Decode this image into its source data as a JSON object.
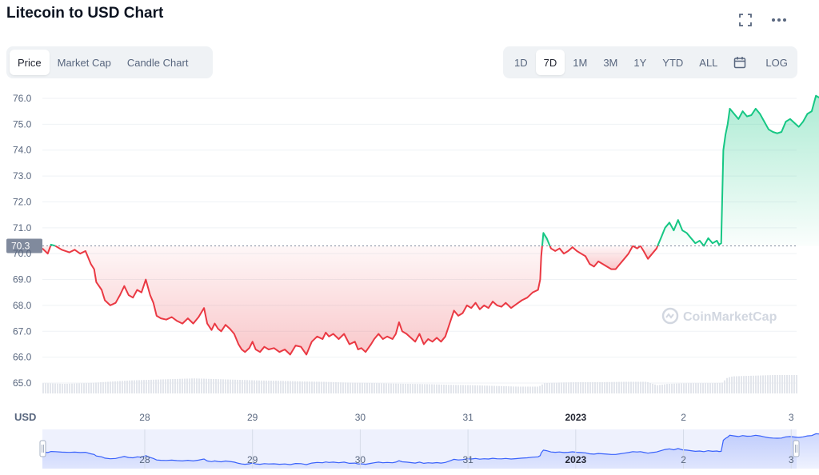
{
  "header": {
    "title": "Litecoin to USD Chart"
  },
  "tabs": [
    {
      "label": "Price",
      "active": true
    },
    {
      "label": "Market Cap",
      "active": false
    },
    {
      "label": "Candle Chart",
      "active": false
    }
  ],
  "ranges": [
    {
      "label": "1D",
      "active": false
    },
    {
      "label": "7D",
      "active": true
    },
    {
      "label": "1M",
      "active": false
    },
    {
      "label": "3M",
      "active": false
    },
    {
      "label": "1Y",
      "active": false
    },
    {
      "label": "YTD",
      "active": false
    },
    {
      "label": "ALL",
      "active": false
    }
  ],
  "log_label": "LOG",
  "icons": {
    "fullscreen": "fullscreen-icon",
    "more": "more-icon",
    "calendar": "calendar-icon"
  },
  "watermark": "CoinMarketCap",
  "currency_label": "USD",
  "colors": {
    "up": "#16c784",
    "down": "#ea3943",
    "accent": "#3861fb"
  },
  "chart_data": {
    "type": "area",
    "ylim": [
      64.6,
      76.4
    ],
    "yticks": [
      65.0,
      66.0,
      67.0,
      68.0,
      69.0,
      70.0,
      71.0,
      72.0,
      73.0,
      74.0,
      75.0,
      76.0
    ],
    "reference_value": 70.3,
    "reference_label": "70.3",
    "xticks": [
      {
        "label": "28",
        "bold": false,
        "x": 0.95
      },
      {
        "label": "29",
        "bold": false,
        "x": 1.95
      },
      {
        "label": "30",
        "bold": false,
        "x": 2.95
      },
      {
        "label": "31",
        "bold": false,
        "x": 3.95
      },
      {
        "label": "2023",
        "bold": true,
        "x": 4.95
      },
      {
        "label": "2",
        "bold": false,
        "x": 5.95
      },
      {
        "label": "3",
        "bold": false,
        "x": 6.95
      }
    ],
    "xlim": [
      0,
      7
    ],
    "price": [
      [
        0.0,
        70.2
      ],
      [
        0.05,
        70.0
      ],
      [
        0.08,
        70.35
      ],
      [
        0.12,
        70.3
      ],
      [
        0.18,
        70.15
      ],
      [
        0.25,
        70.05
      ],
      [
        0.3,
        70.15
      ],
      [
        0.35,
        70.0
      ],
      [
        0.4,
        70.1
      ],
      [
        0.45,
        69.6
      ],
      [
        0.48,
        69.4
      ],
      [
        0.5,
        68.9
      ],
      [
        0.55,
        68.6
      ],
      [
        0.58,
        68.2
      ],
      [
        0.63,
        68.0
      ],
      [
        0.68,
        68.1
      ],
      [
        0.72,
        68.4
      ],
      [
        0.76,
        68.75
      ],
      [
        0.8,
        68.4
      ],
      [
        0.84,
        68.3
      ],
      [
        0.88,
        68.6
      ],
      [
        0.92,
        68.5
      ],
      [
        0.96,
        69.0
      ],
      [
        1.0,
        68.4
      ],
      [
        1.03,
        68.1
      ],
      [
        1.06,
        67.6
      ],
      [
        1.1,
        67.5
      ],
      [
        1.15,
        67.45
      ],
      [
        1.2,
        67.55
      ],
      [
        1.25,
        67.4
      ],
      [
        1.3,
        67.3
      ],
      [
        1.35,
        67.5
      ],
      [
        1.4,
        67.3
      ],
      [
        1.45,
        67.55
      ],
      [
        1.5,
        67.9
      ],
      [
        1.53,
        67.3
      ],
      [
        1.57,
        67.05
      ],
      [
        1.6,
        67.3
      ],
      [
        1.63,
        67.1
      ],
      [
        1.66,
        67.0
      ],
      [
        1.7,
        67.25
      ],
      [
        1.74,
        67.1
      ],
      [
        1.78,
        66.9
      ],
      [
        1.82,
        66.5
      ],
      [
        1.85,
        66.3
      ],
      [
        1.88,
        66.2
      ],
      [
        1.92,
        66.35
      ],
      [
        1.95,
        66.6
      ],
      [
        1.98,
        66.3
      ],
      [
        2.02,
        66.2
      ],
      [
        2.06,
        66.4
      ],
      [
        2.1,
        66.3
      ],
      [
        2.15,
        66.35
      ],
      [
        2.2,
        66.2
      ],
      [
        2.25,
        66.3
      ],
      [
        2.3,
        66.1
      ],
      [
        2.35,
        66.45
      ],
      [
        2.4,
        66.4
      ],
      [
        2.45,
        66.1
      ],
      [
        2.5,
        66.6
      ],
      [
        2.55,
        66.8
      ],
      [
        2.6,
        66.7
      ],
      [
        2.63,
        66.95
      ],
      [
        2.66,
        66.8
      ],
      [
        2.7,
        66.9
      ],
      [
        2.75,
        66.7
      ],
      [
        2.8,
        66.9
      ],
      [
        2.85,
        66.5
      ],
      [
        2.9,
        66.6
      ],
      [
        2.93,
        66.3
      ],
      [
        2.96,
        66.35
      ],
      [
        3.0,
        66.2
      ],
      [
        3.05,
        66.5
      ],
      [
        3.08,
        66.7
      ],
      [
        3.12,
        66.9
      ],
      [
        3.16,
        66.7
      ],
      [
        3.2,
        66.8
      ],
      [
        3.25,
        66.7
      ],
      [
        3.28,
        66.9
      ],
      [
        3.31,
        67.35
      ],
      [
        3.34,
        67.0
      ],
      [
        3.38,
        66.9
      ],
      [
        3.42,
        66.75
      ],
      [
        3.46,
        66.6
      ],
      [
        3.5,
        66.9
      ],
      [
        3.54,
        66.5
      ],
      [
        3.58,
        66.7
      ],
      [
        3.62,
        66.6
      ],
      [
        3.66,
        66.75
      ],
      [
        3.7,
        66.6
      ],
      [
        3.74,
        66.8
      ],
      [
        3.78,
        67.3
      ],
      [
        3.82,
        67.8
      ],
      [
        3.86,
        67.6
      ],
      [
        3.9,
        67.7
      ],
      [
        3.94,
        68.0
      ],
      [
        3.98,
        67.9
      ],
      [
        4.02,
        68.1
      ],
      [
        4.06,
        67.85
      ],
      [
        4.1,
        68.0
      ],
      [
        4.14,
        67.9
      ],
      [
        4.18,
        68.15
      ],
      [
        4.22,
        68.0
      ],
      [
        4.26,
        67.95
      ],
      [
        4.3,
        68.1
      ],
      [
        4.35,
        67.9
      ],
      [
        4.4,
        68.05
      ],
      [
        4.45,
        68.2
      ],
      [
        4.5,
        68.3
      ],
      [
        4.55,
        68.5
      ],
      [
        4.6,
        68.6
      ],
      [
        4.62,
        69.0
      ],
      [
        4.63,
        69.9
      ],
      [
        4.65,
        70.8
      ],
      [
        4.68,
        70.6
      ],
      [
        4.72,
        70.2
      ],
      [
        4.76,
        70.1
      ],
      [
        4.8,
        70.2
      ],
      [
        4.84,
        70.0
      ],
      [
        4.88,
        70.1
      ],
      [
        4.92,
        70.25
      ],
      [
        4.96,
        70.1
      ],
      [
        5.0,
        70.0
      ],
      [
        5.04,
        69.9
      ],
      [
        5.08,
        69.6
      ],
      [
        5.12,
        69.5
      ],
      [
        5.16,
        69.7
      ],
      [
        5.2,
        69.6
      ],
      [
        5.24,
        69.5
      ],
      [
        5.28,
        69.4
      ],
      [
        5.32,
        69.4
      ],
      [
        5.36,
        69.6
      ],
      [
        5.4,
        69.8
      ],
      [
        5.44,
        70.0
      ],
      [
        5.48,
        70.3
      ],
      [
        5.52,
        70.2
      ],
      [
        5.55,
        70.3
      ],
      [
        5.58,
        70.1
      ],
      [
        5.62,
        69.8
      ],
      [
        5.66,
        70.0
      ],
      [
        5.7,
        70.2
      ],
      [
        5.74,
        70.6
      ],
      [
        5.78,
        71.0
      ],
      [
        5.82,
        71.2
      ],
      [
        5.86,
        70.9
      ],
      [
        5.9,
        71.3
      ],
      [
        5.94,
        70.9
      ],
      [
        5.98,
        70.8
      ],
      [
        6.02,
        70.6
      ],
      [
        6.06,
        70.4
      ],
      [
        6.1,
        70.5
      ],
      [
        6.14,
        70.3
      ],
      [
        6.18,
        70.6
      ],
      [
        6.22,
        70.4
      ],
      [
        6.26,
        70.5
      ],
      [
        6.28,
        70.35
      ],
      [
        6.3,
        70.4
      ],
      [
        6.32,
        74.0
      ],
      [
        6.34,
        74.6
      ],
      [
        6.36,
        75.0
      ],
      [
        6.38,
        75.6
      ],
      [
        6.42,
        75.4
      ],
      [
        6.46,
        75.2
      ],
      [
        6.5,
        75.5
      ],
      [
        6.54,
        75.3
      ],
      [
        6.58,
        75.35
      ],
      [
        6.62,
        75.6
      ],
      [
        6.66,
        75.4
      ],
      [
        6.7,
        75.1
      ],
      [
        6.74,
        74.8
      ],
      [
        6.78,
        74.7
      ],
      [
        6.82,
        74.65
      ],
      [
        6.86,
        74.7
      ],
      [
        6.9,
        75.1
      ],
      [
        6.94,
        75.2
      ],
      [
        6.98,
        75.05
      ],
      [
        7.02,
        74.9
      ],
      [
        7.06,
        75.1
      ],
      [
        7.1,
        75.4
      ],
      [
        7.14,
        75.5
      ],
      [
        7.18,
        76.1
      ],
      [
        7.22,
        76.0
      ],
      [
        7.25,
        76.05
      ]
    ],
    "volume_axis_max": 100,
    "volume": [
      [
        0.0,
        30
      ],
      [
        0.2,
        28
      ],
      [
        0.4,
        30
      ],
      [
        0.6,
        34
      ],
      [
        0.8,
        38
      ],
      [
        1.0,
        40
      ],
      [
        1.2,
        42
      ],
      [
        1.4,
        44
      ],
      [
        1.6,
        42
      ],
      [
        1.8,
        40
      ],
      [
        2.0,
        38
      ],
      [
        2.2,
        37
      ],
      [
        2.4,
        35
      ],
      [
        2.6,
        34
      ],
      [
        2.8,
        32
      ],
      [
        3.0,
        31
      ],
      [
        3.2,
        29
      ],
      [
        3.4,
        28
      ],
      [
        3.6,
        27
      ],
      [
        3.8,
        25
      ],
      [
        4.0,
        24
      ],
      [
        4.2,
        22
      ],
      [
        4.4,
        20
      ],
      [
        4.6,
        20
      ],
      [
        4.65,
        30
      ],
      [
        4.8,
        32
      ],
      [
        5.0,
        33
      ],
      [
        5.2,
        33
      ],
      [
        5.4,
        34
      ],
      [
        5.6,
        34
      ],
      [
        5.7,
        24
      ],
      [
        5.8,
        28
      ],
      [
        6.0,
        30
      ],
      [
        6.2,
        30
      ],
      [
        6.3,
        31
      ],
      [
        6.35,
        46
      ],
      [
        6.4,
        50
      ],
      [
        6.6,
        52
      ],
      [
        6.8,
        54
      ],
      [
        7.0,
        54
      ],
      [
        7.2,
        55
      ],
      [
        7.25,
        45
      ]
    ]
  },
  "navigator": {
    "xticks": [
      "28",
      "29",
      "30",
      "31",
      "2023",
      "2",
      "3"
    ]
  }
}
